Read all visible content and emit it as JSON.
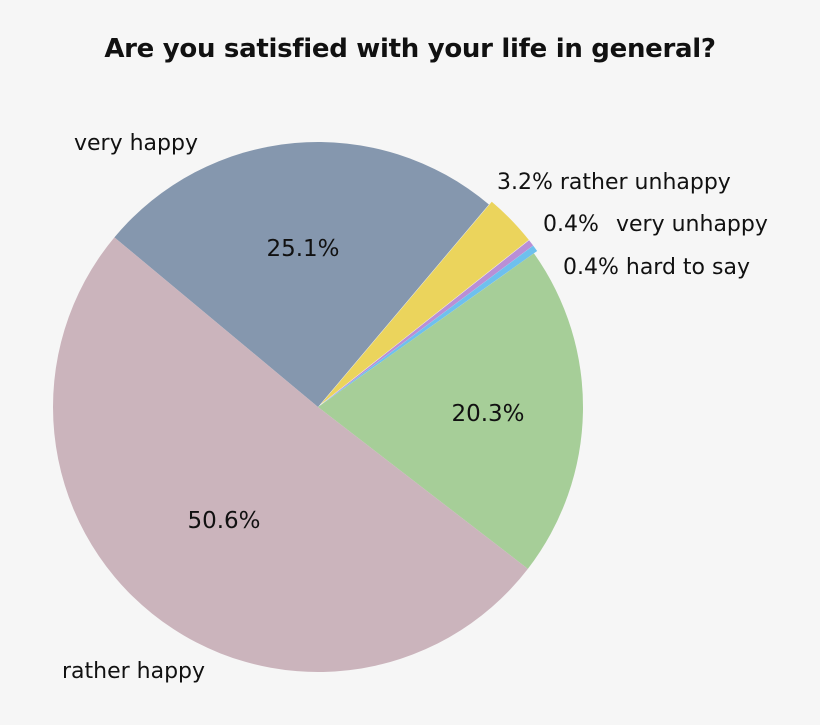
{
  "chart_data": {
    "type": "pie",
    "title": "Are you satisfied with your life in general?",
    "categories": [
      "very happy",
      "rather unhappy",
      "very unhappy",
      "hard to say",
      "rather happy (green)",
      "rather happy"
    ],
    "slices": [
      {
        "key": "very_happy",
        "label": "very happy",
        "value": 25.1,
        "value_label": "25.1%",
        "color": "#8597AE",
        "explode": 0
      },
      {
        "key": "rather_unhappy",
        "label": "rather unhappy",
        "value": 3.2,
        "value_label": "3.2%",
        "color": "#EBD45C",
        "explode": 4
      },
      {
        "key": "very_unhappy",
        "label": "very unhappy",
        "value": 0.4,
        "value_label": "0.4%",
        "color": "#B98FD6",
        "explode": 4
      },
      {
        "key": "hard_to_say",
        "label": "hard to say",
        "value": 0.4,
        "value_label": "0.4%",
        "color": "#6EC0EE",
        "explode": 4
      },
      {
        "key": "unlabeled_green",
        "label": "",
        "value": 20.3,
        "value_label": "20.3%",
        "color": "#A6CE98",
        "explode": 0
      },
      {
        "key": "rather_happy",
        "label": "rather happy",
        "value": 50.6,
        "value_label": "50.6%",
        "color": "#CBB4BC",
        "explode": 0
      }
    ],
    "legend": "none (outside slice labels)",
    "start_angle_deg": 219.8
  },
  "labels": {
    "title": "Are you satisfied with your life in general?",
    "very_happy": "very happy",
    "rather_happy": "rather happy",
    "rather_unhappy": "3.2% rather unhappy",
    "very_unhappy_pct": "0.4%",
    "very_unhappy": "very unhappy",
    "hard_to_say": "0.4% hard to say",
    "pct_very_happy": "25.1%",
    "pct_green": "20.3%",
    "pct_rather_happy": "50.6%"
  },
  "colors": {
    "background": "#f6f6f6"
  }
}
